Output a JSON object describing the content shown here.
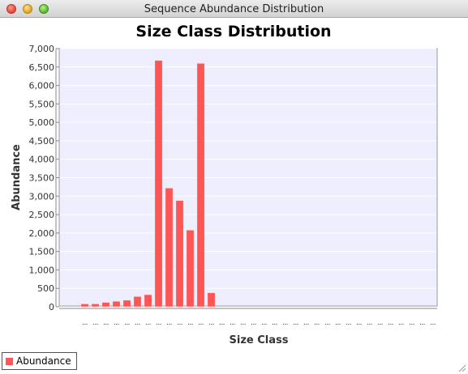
{
  "window": {
    "title": "Sequence Abundance Distribution"
  },
  "colors": {
    "bar": "#ff5555",
    "plot_background": "#eeeeff"
  },
  "chart_data": {
    "type": "bar",
    "title": "Size Class Distribution",
    "xlabel": "Size Class",
    "ylabel": "Abundance",
    "ylim": [
      0,
      7000
    ],
    "yticks": [
      0,
      500,
      1000,
      1500,
      2000,
      2500,
      3000,
      3500,
      4000,
      4500,
      5000,
      5500,
      6000,
      6500,
      7000
    ],
    "ytick_labels": [
      "0",
      "500",
      "1,000",
      "1,500",
      "2,000",
      "2,500",
      "3,000",
      "3,500",
      "4,000",
      "4,500",
      "5,000",
      "5,500",
      "6,000",
      "6,500",
      "7,000"
    ],
    "grid": true,
    "legend_position": "bottom-left",
    "categories": [
      "...",
      "...",
      "...",
      "...",
      "...",
      "...",
      "...",
      "...",
      "...",
      "...",
      "...",
      "...",
      "...",
      "...",
      "...",
      "...",
      "...",
      "...",
      "...",
      "...",
      "...",
      "...",
      "...",
      "...",
      "...",
      "...",
      "...",
      "...",
      "...",
      "...",
      "...",
      "...",
      "...",
      "..."
    ],
    "series": [
      {
        "name": "Abundance",
        "values": [
          80,
          80,
          120,
          150,
          180,
          280,
          330,
          6680,
          3220,
          2880,
          2080,
          6600,
          380,
          0,
          0,
          0,
          0,
          0,
          0,
          0,
          0,
          0,
          0,
          0,
          0,
          0,
          0,
          0,
          0,
          0,
          0,
          0,
          0,
          0
        ]
      }
    ]
  }
}
